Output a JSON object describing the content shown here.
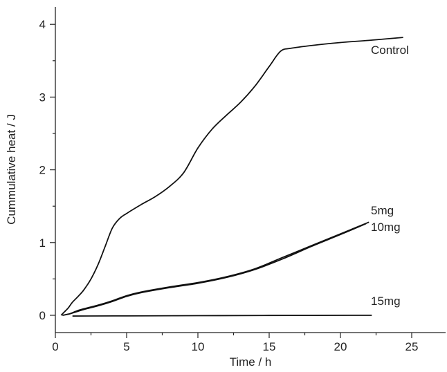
{
  "chart_data": {
    "type": "line",
    "title": "",
    "xlabel": "Time / h",
    "ylabel": "Cummulative heat / J",
    "xlim": [
      0,
      27.5
    ],
    "ylim": [
      -0.05,
      4.25
    ],
    "x_ticks": [
      0,
      5,
      10,
      15,
      20,
      25
    ],
    "y_ticks": [
      0,
      1,
      2,
      3,
      4
    ],
    "grid": false,
    "legend": "none (inline labels at line ends)",
    "series": [
      {
        "name": "Control",
        "x": [
          0.4,
          0.6,
          0.9,
          1.2,
          1.6,
          2.0,
          2.5,
          3.0,
          3.5,
          4.0,
          4.5,
          5.0,
          6.0,
          7.0,
          8.0,
          9.0,
          10.0,
          11.0,
          12.0,
          13.0,
          14.0,
          15.0,
          15.8,
          16.5,
          18.0,
          20.0,
          22.0,
          24.4
        ],
        "y": [
          0.0,
          0.04,
          0.1,
          0.18,
          0.26,
          0.35,
          0.5,
          0.7,
          0.95,
          1.2,
          1.33,
          1.4,
          1.52,
          1.63,
          1.77,
          1.96,
          2.3,
          2.56,
          2.75,
          2.93,
          3.15,
          3.42,
          3.63,
          3.67,
          3.71,
          3.75,
          3.78,
          3.82
        ]
      },
      {
        "name": "5mg",
        "x": [
          0.5,
          1.0,
          1.5,
          2.0,
          3.0,
          4.0,
          5.0,
          6.0,
          8.0,
          10.0,
          12.0,
          14.0,
          16.0,
          18.0,
          20.0,
          22.0
        ],
        "y": [
          0.0,
          0.02,
          0.06,
          0.09,
          0.14,
          0.2,
          0.27,
          0.32,
          0.39,
          0.45,
          0.53,
          0.64,
          0.8,
          0.96,
          1.12,
          1.28
        ]
      },
      {
        "name": "10mg",
        "x": [
          0.5,
          1.0,
          1.5,
          2.0,
          3.0,
          4.0,
          5.0,
          6.0,
          8.0,
          10.0,
          12.0,
          14.0,
          16.0,
          18.0,
          20.0,
          21.8
        ],
        "y": [
          0.0,
          0.02,
          0.05,
          0.08,
          0.13,
          0.19,
          0.26,
          0.31,
          0.38,
          0.44,
          0.52,
          0.63,
          0.78,
          0.95,
          1.11,
          1.26
        ]
      },
      {
        "name": "15mg",
        "x": [
          1.2,
          5.0,
          10.0,
          15.0,
          22.2
        ],
        "y": [
          -0.01,
          -0.008,
          -0.005,
          -0.002,
          0.0
        ]
      }
    ],
    "labels": {
      "control": "Control",
      "s5": "5mg",
      "s10": "10mg",
      "s15": "15mg"
    }
  }
}
